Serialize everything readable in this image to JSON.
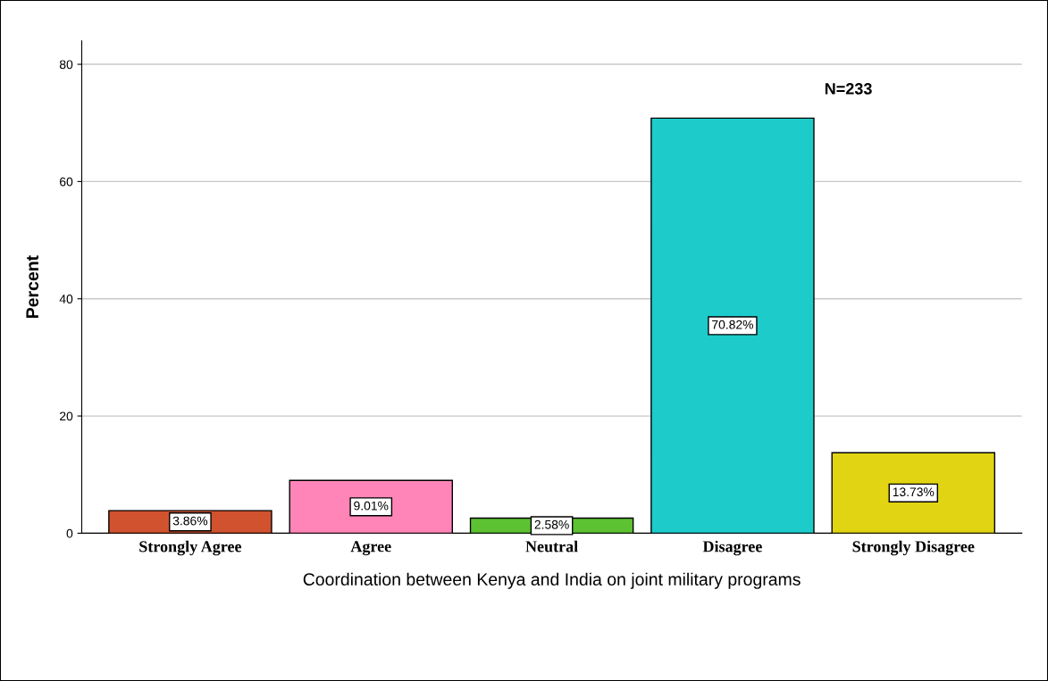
{
  "chart_data": {
    "type": "bar",
    "xlabel": "Coordination between Kenya and India on joint military programs",
    "ylabel": "Percent",
    "categories": [
      "Strongly Agree",
      "Agree",
      "Neutral",
      "Disagree",
      "Strongly Disagree"
    ],
    "values": [
      3.86,
      9.01,
      2.58,
      70.82,
      13.73
    ],
    "value_labels": [
      "3.86%",
      "9.01%",
      "2.58%",
      "70.82%",
      "13.73%"
    ],
    "colors": [
      "#d1522f",
      "#ff85b9",
      "#5cc232",
      "#1dcbcb",
      "#e1d412"
    ],
    "ylim": [
      0,
      84
    ],
    "yticks": [
      0,
      20,
      40,
      60,
      80
    ],
    "grid": "y",
    "annotations": [
      "N=233"
    ]
  }
}
